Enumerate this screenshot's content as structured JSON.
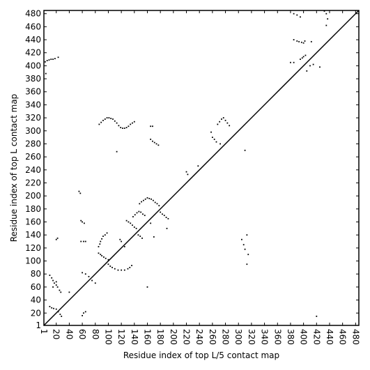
{
  "chart_data": {
    "type": "scatter",
    "xlabel": "Residue index of top L/5 contact map",
    "ylabel": "Residue index of top L contact map",
    "color": "#000000",
    "xlim": [
      1,
      485
    ],
    "ylim": [
      1,
      485
    ],
    "xticks": [
      1,
      20,
      40,
      60,
      80,
      100,
      120,
      140,
      160,
      180,
      200,
      220,
      240,
      260,
      280,
      300,
      320,
      340,
      360,
      380,
      400,
      420,
      440,
      460,
      480
    ],
    "yticks": [
      1,
      20,
      40,
      60,
      80,
      100,
      120,
      140,
      160,
      180,
      200,
      220,
      240,
      260,
      280,
      300,
      320,
      340,
      360,
      380,
      400,
      420,
      440,
      460,
      480
    ],
    "x": [
      3,
      6,
      9,
      12,
      15,
      18,
      23,
      4,
      86,
      89,
      92,
      95,
      98,
      101,
      104,
      107,
      110,
      113,
      116,
      119,
      122,
      125,
      128,
      131,
      134,
      137,
      140,
      113,
      165,
      168,
      165,
      168,
      171,
      174,
      177,
      10,
      13,
      15,
      17,
      20,
      22,
      25,
      27,
      15,
      20,
      10,
      13,
      16,
      20,
      23,
      26,
      28,
      40,
      22,
      20,
      55,
      57,
      58,
      60,
      63,
      58,
      62,
      65,
      60,
      65,
      70,
      75,
      80,
      62,
      65,
      60,
      85,
      87,
      88,
      90,
      92,
      95,
      98,
      85,
      88,
      90,
      93,
      96,
      100,
      100,
      103,
      106,
      110,
      115,
      120,
      125,
      130,
      133,
      136,
      118,
      120,
      125,
      128,
      131,
      134,
      137,
      140,
      143,
      138,
      141,
      144,
      147,
      150,
      153,
      156,
      146,
      149,
      152,
      148,
      151,
      154,
      157,
      160,
      163,
      166,
      169,
      172,
      175,
      178,
      160,
      165,
      170,
      180,
      183,
      186,
      189,
      192,
      190,
      220,
      222,
      238,
      258,
      260,
      263,
      266,
      268,
      271,
      274,
      277,
      280,
      283,
      286,
      272,
      385,
      390,
      393,
      397,
      400,
      402,
      395,
      398,
      400,
      403,
      385,
      390,
      395,
      432,
      435,
      437,
      435,
      410,
      415,
      425,
      405,
      380,
      385,
      412,
      420,
      310,
      305,
      308,
      310,
      315,
      313,
      313
    ],
    "y": [
      406,
      408,
      409,
      410,
      410,
      411,
      413,
      388,
      310,
      313,
      316,
      318,
      320,
      320,
      319,
      318,
      315,
      312,
      308,
      305,
      304,
      304,
      305,
      307,
      310,
      312,
      314,
      268,
      307,
      307,
      287,
      284,
      282,
      280,
      278,
      78,
      74,
      70,
      66,
      63,
      60,
      55,
      52,
      60,
      68,
      30,
      28,
      27,
      26,
      22,
      18,
      15,
      52,
      135,
      133,
      207,
      204,
      162,
      160,
      158,
      130,
      130,
      130,
      82,
      80,
      76,
      70,
      66,
      20,
      22,
      16,
      122,
      126,
      130,
      134,
      138,
      140,
      143,
      112,
      110,
      108,
      106,
      104,
      102,
      95,
      92,
      90,
      88,
      86,
      86,
      86,
      88,
      90,
      93,
      133,
      130,
      122,
      162,
      160,
      158,
      155,
      152,
      150,
      168,
      171,
      174,
      176,
      175,
      172,
      170,
      140,
      138,
      135,
      188,
      191,
      193,
      195,
      197,
      196,
      195,
      193,
      190,
      188,
      185,
      60,
      158,
      137,
      175,
      172,
      170,
      167,
      165,
      150,
      237,
      233,
      246,
      298,
      290,
      287,
      283,
      310,
      314,
      318,
      320,
      316,
      312,
      308,
      280,
      440,
      438,
      437,
      436,
      435,
      438,
      410,
      412,
      414,
      416,
      480,
      478,
      475,
      484,
      480,
      472,
      462,
      400,
      402,
      398,
      392,
      405,
      405,
      437,
      15,
      270,
      133,
      125,
      118,
      110,
      95,
      140
    ]
  }
}
